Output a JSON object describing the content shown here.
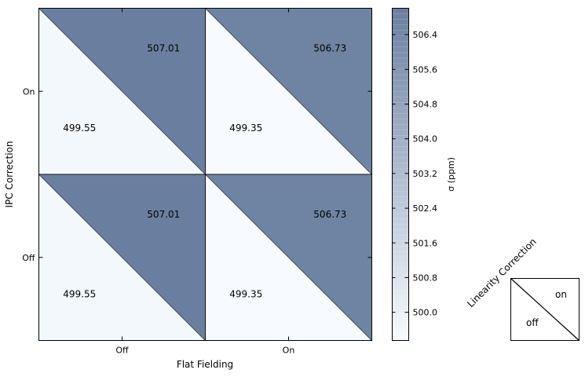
{
  "chart_data": {
    "type": "heatmap",
    "xlabel": "Flat Fielding",
    "ylabel": "IPC Correction",
    "x_categories": [
      "Off",
      "On"
    ],
    "y_categories": [
      "Off",
      "On"
    ],
    "cells": [
      {
        "ipc": "On",
        "flat": "Off",
        "linearity_off": 499.55,
        "linearity_on": 507.01
      },
      {
        "ipc": "On",
        "flat": "On",
        "linearity_off": 499.35,
        "linearity_on": 506.73
      },
      {
        "ipc": "Off",
        "flat": "Off",
        "linearity_off": 499.55,
        "linearity_on": 507.01
      },
      {
        "ipc": "Off",
        "flat": "On",
        "linearity_off": 499.35,
        "linearity_on": 506.73
      }
    ],
    "cell_labels": [
      "499.55",
      "507.01",
      "499.35",
      "506.73",
      "499.55",
      "507.01",
      "499.35",
      "506.73"
    ],
    "colorbar": {
      "label": "σ (ppm)",
      "range": [
        499.35,
        507.01
      ],
      "ticks": [
        500.0,
        500.8,
        501.6,
        502.4,
        503.2,
        504.0,
        504.8,
        505.6,
        506.4
      ],
      "tick_labels": [
        "500.0",
        "500.8",
        "501.6",
        "502.4",
        "503.2",
        "504.0",
        "504.8",
        "505.6",
        "506.4"
      ],
      "color_low": "#f7fbff",
      "color_high": "#6a7fa0"
    },
    "legend": {
      "title": "Linearity Correction",
      "upper_label": "on",
      "lower_label": "off"
    },
    "grid": false
  }
}
